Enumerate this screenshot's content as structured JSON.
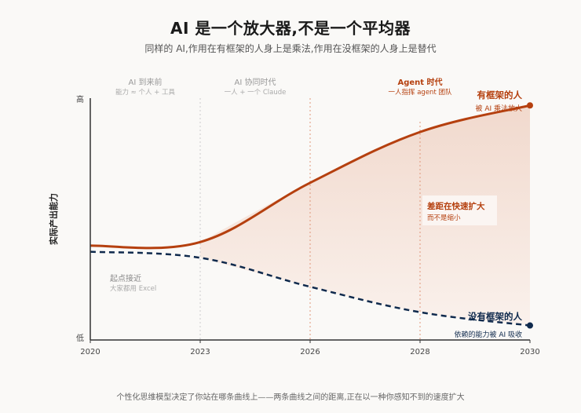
{
  "header": {
    "title": "AI 是一个放大器,不是一个平均器",
    "subtitle": "同样的 AI,作用在有框架的人身上是乘法,作用在没框架的人身上是替代"
  },
  "footer": "个性化思维模型决定了你站在哪条曲线上——两条曲线之间的距离,正在以一种你感知不到的速度扩大",
  "colors": {
    "framework": "#b5400f",
    "no_framework": "#0f2a4d",
    "fill_top": "#f1d9cd",
    "fill_bottom": "#faf1ec",
    "axis": "#333333",
    "era_line_neutral": "#cccccc",
    "era_line_active": "#e0967a"
  },
  "chart_data": {
    "type": "line",
    "title": "AI 是一个放大器,不是一个平均器",
    "xlabel": "",
    "ylabel": "实际产出能力",
    "y_tick_labels": {
      "low": "低",
      "high": "高"
    },
    "ylim": [
      0,
      100
    ],
    "x": [
      "2020",
      "2023",
      "2026",
      "2028",
      "2030"
    ],
    "grid": false,
    "series": [
      {
        "name": "有框架的人",
        "subtitle": "被 AI 乘法放大",
        "style": "solid",
        "values": [
          39,
          40.5,
          65,
          86,
          97
        ]
      },
      {
        "name": "没有框架的人",
        "subtitle": "依赖的能力被 AI 吸收",
        "style": "dashed",
        "values": [
          36.5,
          34,
          22,
          11.5,
          6
        ]
      }
    ],
    "eras": [
      {
        "title": "AI 到来前",
        "subtitle": "能力 ≈ 个人 + 工具",
        "active": false,
        "boundary_after": "2023"
      },
      {
        "title": "AI 协同时代",
        "subtitle": "一人 + 一个 Claude",
        "active": false,
        "boundary_after": "2026"
      },
      {
        "title": "Agent 时代",
        "subtitle": "一人指挥 agent 团队",
        "active": true,
        "boundary_after": "2028"
      }
    ],
    "annotations": [
      {
        "id": "start",
        "title": "起点接近",
        "subtitle": "大家都用 Excel"
      },
      {
        "id": "gap",
        "title": "差距在快速扩大",
        "subtitle": "而不是缩小"
      }
    ],
    "legend": "inline-end-labels"
  }
}
